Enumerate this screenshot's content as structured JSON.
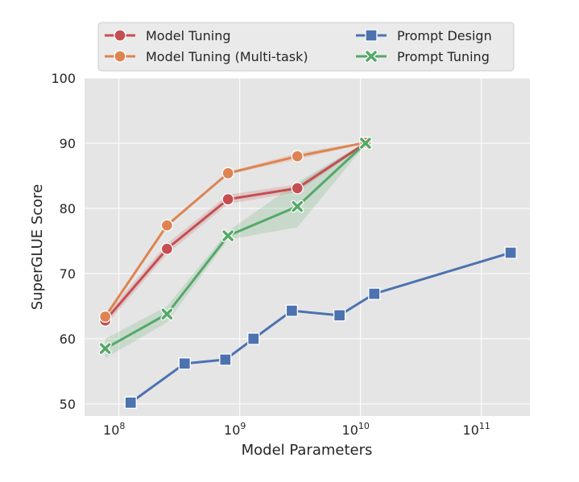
{
  "chart_data": {
    "type": "line",
    "title": "",
    "xlabel": "Model Parameters",
    "ylabel": "SuperGLUE Score",
    "xscale": "log",
    "xlim": [
      52000000.0,
      380000000000.0
    ],
    "ylim": [
      48,
      100
    ],
    "x_ticks": [
      {
        "base": "10",
        "exp": "8",
        "value": 100000000.0
      },
      {
        "base": "10",
        "exp": "9",
        "value": 1000000000.0
      },
      {
        "base": "10",
        "exp": "10",
        "value": 10000000000.0
      },
      {
        "base": "10",
        "exp": "11",
        "value": 100000000000.0
      }
    ],
    "y_ticks": [
      "50",
      "60",
      "70",
      "80",
      "90",
      "100"
    ],
    "grid": true,
    "background": "#e5e5e5",
    "legend_placement": "top-center, above plot",
    "series": [
      {
        "name": "Model Tuning",
        "color": "#c44e52",
        "marker": "circle",
        "x": [
          77000000.0,
          250000000.0,
          800000000.0,
          3000000000.0,
          11000000000.0
        ],
        "y": [
          62.8,
          73.8,
          81.4,
          83.1,
          90.0
        ],
        "lower": [
          62.0,
          73.0,
          80.7,
          82.5,
          89.8
        ],
        "upper": [
          63.6,
          74.6,
          82.1,
          83.7,
          90.2
        ]
      },
      {
        "name": "Model Tuning (Multi-task)",
        "color": "#dd8452",
        "marker": "circle",
        "x": [
          77000000.0,
          250000000.0,
          800000000.0,
          3000000000.0,
          11000000000.0
        ],
        "y": [
          63.4,
          77.4,
          85.4,
          88.0,
          90.1
        ],
        "lower": [
          63.2,
          77.2,
          85.2,
          87.5,
          90.0
        ],
        "upper": [
          63.6,
          77.6,
          85.6,
          88.5,
          90.2
        ]
      },
      {
        "name": "Prompt Design",
        "color": "#4c72b0",
        "marker": "square",
        "x": [
          125000000.0,
          350000000.0,
          760000000.0,
          1300000000.0,
          2700000000.0,
          6700000000.0,
          13000000000.0,
          175000000000.0
        ],
        "y": [
          50.2,
          56.2,
          56.8,
          60.0,
          64.3,
          63.6,
          66.9,
          73.2
        ]
      },
      {
        "name": "Prompt Tuning",
        "color": "#55a868",
        "marker": "x",
        "x": [
          77000000.0,
          250000000.0,
          800000000.0,
          3000000000.0,
          11000000000.0
        ],
        "y": [
          58.5,
          63.8,
          75.8,
          80.3,
          90.0
        ],
        "lower": [
          57.0,
          62.5,
          75.2,
          77.1,
          89.8
        ],
        "upper": [
          60.0,
          65.0,
          76.5,
          84.0,
          90.2
        ]
      }
    ]
  }
}
